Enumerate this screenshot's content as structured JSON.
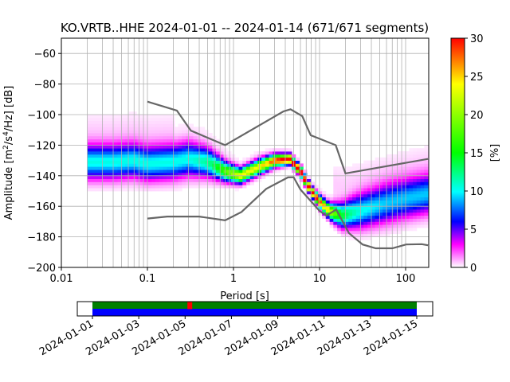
{
  "chart_data": {
    "type": "heatmap",
    "title": "KO.VRTB..HHE   2024-01-01 -- 2024-01-14  (671/671 segments)",
    "xlabel": "Period [s]",
    "ylabel_parts": [
      "Amplitude [m",
      "2",
      "/s",
      "4",
      "/Hz] [dB]"
    ],
    "xscale": "log",
    "xlim": [
      0.01,
      182
    ],
    "ylim": [
      -200,
      -50
    ],
    "xticks": [
      0.01,
      0.1,
      1,
      10,
      100
    ],
    "xtick_labels": [
      "0.01",
      "0.1",
      "1",
      "10",
      "100"
    ],
    "yticks": [
      -60,
      -80,
      -100,
      -120,
      -140,
      -160,
      -180,
      -200
    ],
    "ytick_labels": [
      "−60",
      "−80",
      "−100",
      "−120",
      "−140",
      "−160",
      "−180",
      "−200"
    ],
    "grid": true,
    "colorbar": {
      "label": "[%]",
      "range": [
        0,
        30
      ],
      "ticks": [
        0,
        5,
        10,
        15,
        20,
        25,
        30
      ],
      "tick_labels": [
        "0",
        "5",
        "10",
        "15",
        "20",
        "25",
        "30"
      ]
    },
    "period_range": [
      0.02,
      182
    ],
    "mode_curve": [
      [
        0.02,
        -131,
        7
      ],
      [
        0.04,
        -131,
        7
      ],
      [
        0.07,
        -130,
        7
      ],
      [
        0.1,
        -132,
        7
      ],
      [
        0.2,
        -131,
        7
      ],
      [
        0.3,
        -129,
        7
      ],
      [
        0.5,
        -131,
        6
      ],
      [
        0.8,
        -137,
        4
      ],
      [
        1.2,
        -140,
        3
      ],
      [
        2,
        -134,
        3
      ],
      [
        3,
        -130,
        2.5
      ],
      [
        4.5,
        -129,
        2
      ],
      [
        6,
        -137,
        2
      ],
      [
        8,
        -150,
        2
      ],
      [
        10,
        -157,
        2.5
      ],
      [
        13,
        -163,
        3
      ],
      [
        18,
        -166,
        5
      ],
      [
        30,
        -163,
        7
      ],
      [
        60,
        -158,
        8
      ],
      [
        100,
        -155,
        8
      ],
      [
        182,
        -152,
        8
      ]
    ],
    "noise_models": {
      "high": [
        [
          0.1,
          -91.5
        ],
        [
          0.22,
          -97.4
        ],
        [
          0.32,
          -110.5
        ],
        [
          0.8,
          -120
        ],
        [
          3.8,
          -97.9
        ],
        [
          4.6,
          -96.5
        ],
        [
          6.3,
          -101
        ],
        [
          7.9,
          -113.5
        ],
        [
          15.4,
          -120
        ],
        [
          20,
          -138.5
        ],
        [
          182,
          -129
        ]
      ],
      "low": [
        [
          0.1,
          -168
        ],
        [
          0.17,
          -166.7
        ],
        [
          0.4,
          -166.7
        ],
        [
          0.8,
          -169.2
        ],
        [
          1.24,
          -163.7
        ],
        [
          2.4,
          -148.6
        ],
        [
          4.3,
          -141.1
        ],
        [
          5,
          -141
        ],
        [
          6,
          -149
        ],
        [
          10,
          -163
        ],
        [
          12,
          -166.2
        ],
        [
          15.6,
          -162.1
        ],
        [
          21.9,
          -177.5
        ],
        [
          31.6,
          -185
        ],
        [
          45,
          -187.5
        ],
        [
          70,
          -187.5
        ],
        [
          101,
          -185
        ],
        [
          154,
          -184.8
        ],
        [
          182,
          -185.5
        ]
      ]
    },
    "timeline": {
      "start_day": 1,
      "end_day": 15,
      "gap_day": 5.1,
      "tick_labels": [
        "2024-01-01",
        "2024-01-03",
        "2024-01-05",
        "2024-01-07",
        "2024-01-09",
        "2024-01-11",
        "2024-01-13",
        "2024-01-15"
      ],
      "colors": {
        "data": "#008000",
        "used": "#0000ff",
        "gap": "#ff0000"
      }
    }
  }
}
